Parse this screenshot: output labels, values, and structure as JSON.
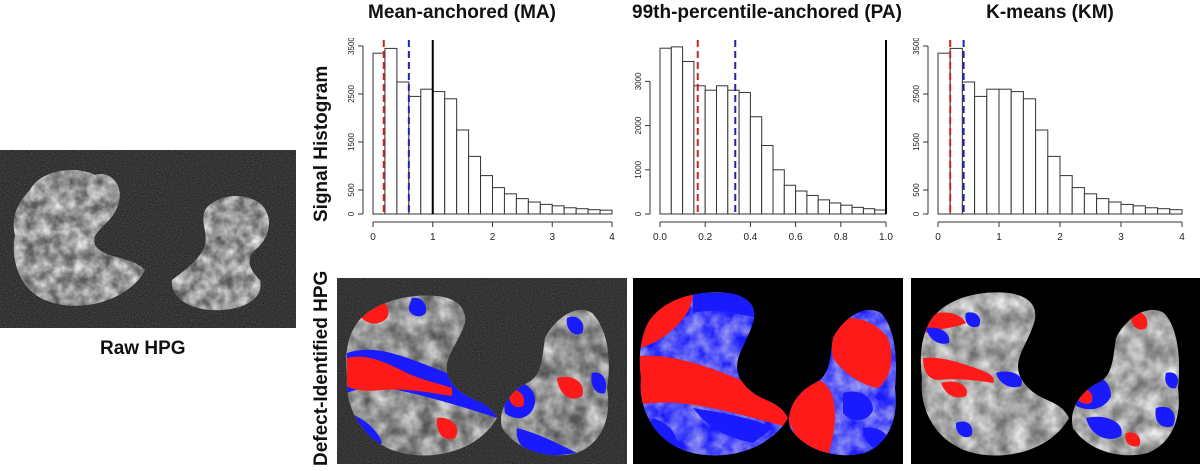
{
  "titles": {
    "ma": "Mean-anchored (MA)",
    "pa": "99th-percentile-anchored (PA)",
    "km": "K-means (KM)"
  },
  "row_labels": {
    "histogram": "Signal Histogram",
    "defect": "Defect-Identified HPG"
  },
  "raw_label": "Raw HPG",
  "colors": {
    "red_line": "#cc2222",
    "blue_line": "#2222aa",
    "defect_red": "#ff1a1a",
    "defect_blue": "#1a1aff",
    "bar_stroke": "#333333"
  },
  "chart_data": [
    {
      "id": "ma",
      "type": "bar",
      "title": "Mean-anchored (MA)",
      "ylabel": "Signal Histogram",
      "bin_width": 0.2,
      "bin_start": 0,
      "values": [
        3350,
        3450,
        2750,
        2450,
        2600,
        2550,
        2400,
        1750,
        1200,
        800,
        550,
        420,
        320,
        250,
        200,
        170,
        130,
        110,
        90,
        80
      ],
      "xlim": [
        0,
        4
      ],
      "ylim": [
        0,
        3500
      ],
      "xticks": [
        0,
        1,
        2,
        3,
        4
      ],
      "xtick_labels": [
        "0",
        "1",
        "2",
        "3",
        "4"
      ],
      "yticks": [
        0,
        500,
        1500,
        2500,
        3500
      ],
      "ytick_labels": [
        "0",
        "500",
        "1500",
        "2500",
        "3500"
      ],
      "vlines": [
        {
          "x": 0.18,
          "color": "red",
          "style": "dashed"
        },
        {
          "x": 0.6,
          "color": "blue",
          "style": "dashed"
        },
        {
          "x": 1.0,
          "color": "black",
          "style": "solid"
        }
      ]
    },
    {
      "id": "pa",
      "type": "bar",
      "title": "99th-percentile-anchored (PA)",
      "ylabel": "",
      "bin_width": 0.05,
      "bin_start": 0,
      "values": [
        3750,
        3780,
        3450,
        2900,
        2800,
        2900,
        2800,
        2750,
        2200,
        1550,
        1000,
        650,
        520,
        420,
        320,
        250,
        200,
        150,
        120,
        90
      ],
      "xlim": [
        0,
        1
      ],
      "ylim": [
        0,
        3800
      ],
      "xticks": [
        0.0,
        0.2,
        0.4,
        0.6,
        0.8,
        1.0
      ],
      "xtick_labels": [
        "0.0",
        "0.2",
        "0.4",
        "0.6",
        "0.8",
        "1.0"
      ],
      "yticks": [
        0,
        1000,
        2000,
        3000
      ],
      "ytick_labels": [
        "0",
        "1000",
        "2000",
        "3000"
      ],
      "vlines": [
        {
          "x": 0.167,
          "color": "red",
          "style": "dashed"
        },
        {
          "x": 0.333,
          "color": "blue",
          "style": "dashed"
        },
        {
          "x": 1.0,
          "color": "black",
          "style": "solid"
        }
      ]
    },
    {
      "id": "km",
      "type": "bar",
      "title": "K-means (KM)",
      "ylabel": "",
      "bin_width": 0.2,
      "bin_start": 0,
      "values": [
        3350,
        3450,
        2750,
        2450,
        2600,
        2600,
        2550,
        2400,
        1750,
        1200,
        800,
        550,
        420,
        320,
        250,
        200,
        170,
        130,
        110,
        90
      ],
      "xlim": [
        0,
        4
      ],
      "ylim": [
        0,
        3500
      ],
      "xticks": [
        0,
        1,
        2,
        3,
        4
      ],
      "xtick_labels": [
        "0",
        "1",
        "2",
        "3",
        "4"
      ],
      "yticks": [
        0,
        500,
        1500,
        2500,
        3500
      ],
      "ytick_labels": [
        "0",
        "500",
        "1500",
        "2500",
        "3500"
      ],
      "vlines": [
        {
          "x": 0.2,
          "color": "red",
          "style": "dashed"
        },
        {
          "x": 0.42,
          "color": "blue",
          "style": "dashed"
        }
      ]
    }
  ]
}
